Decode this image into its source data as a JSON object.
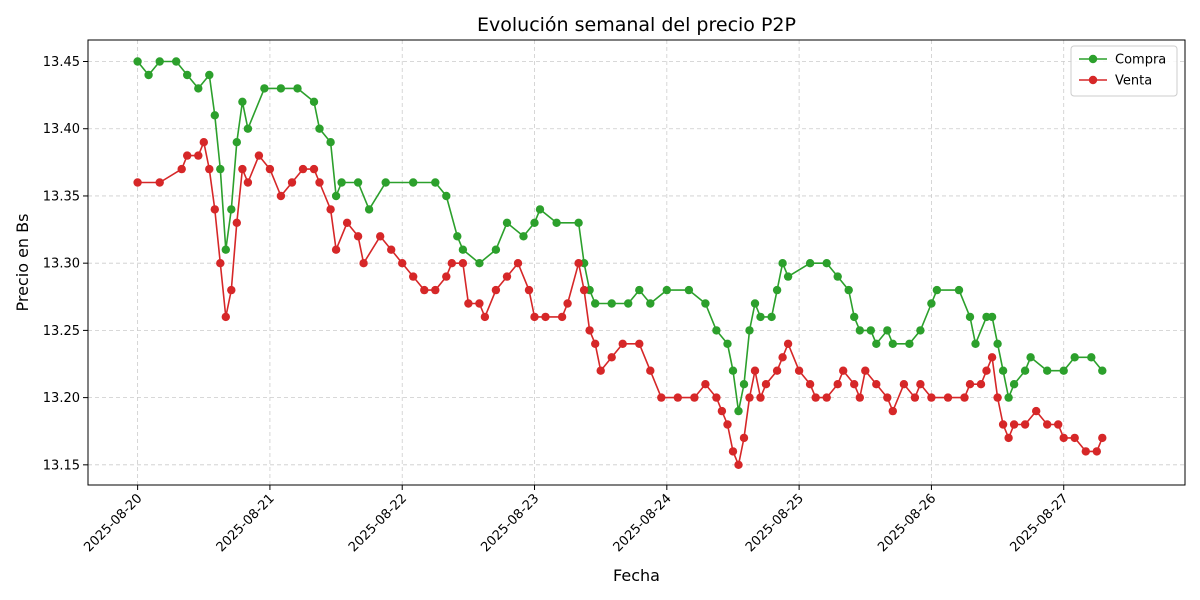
{
  "chart_data": {
    "type": "line",
    "title": "Evolución semanal del precio P2P",
    "xlabel": "Fecha",
    "ylabel": "Precio en Bs",
    "xlim": [
      "2025-08-19T15:00",
      "2025-08-27T22:00"
    ],
    "ylim": [
      13.135,
      13.466
    ],
    "y_ticks": [
      "13.15",
      "13.20",
      "13.25",
      "13.30",
      "13.35",
      "13.40",
      "13.45"
    ],
    "x_ticks": [
      "2025-08-20",
      "2025-08-21",
      "2025-08-22",
      "2025-08-23",
      "2025-08-24",
      "2025-08-25",
      "2025-08-26",
      "2025-08-27"
    ],
    "x_tick_rotation": 45,
    "grid": true,
    "grid_style": "dashed",
    "legend_position": "top-right",
    "marker": "circle",
    "series": [
      {
        "name": "Compra",
        "color": "#2ca02c",
        "points": [
          [
            "2025-08-20T00:00",
            13.45
          ],
          [
            "2025-08-20T02:00",
            13.44
          ],
          [
            "2025-08-20T04:00",
            13.45
          ],
          [
            "2025-08-20T07:00",
            13.45
          ],
          [
            "2025-08-20T09:00",
            13.44
          ],
          [
            "2025-08-20T11:00",
            13.43
          ],
          [
            "2025-08-20T13:00",
            13.44
          ],
          [
            "2025-08-20T14:00",
            13.41
          ],
          [
            "2025-08-20T15:00",
            13.37
          ],
          [
            "2025-08-20T16:00",
            13.31
          ],
          [
            "2025-08-20T17:00",
            13.34
          ],
          [
            "2025-08-20T18:00",
            13.39
          ],
          [
            "2025-08-20T19:00",
            13.42
          ],
          [
            "2025-08-20T20:00",
            13.4
          ],
          [
            "2025-08-20T23:00",
            13.43
          ],
          [
            "2025-08-21T02:00",
            13.43
          ],
          [
            "2025-08-21T05:00",
            13.43
          ],
          [
            "2025-08-21T08:00",
            13.42
          ],
          [
            "2025-08-21T09:00",
            13.4
          ],
          [
            "2025-08-21T11:00",
            13.39
          ],
          [
            "2025-08-21T12:00",
            13.35
          ],
          [
            "2025-08-21T13:00",
            13.36
          ],
          [
            "2025-08-21T16:00",
            13.36
          ],
          [
            "2025-08-21T18:00",
            13.34
          ],
          [
            "2025-08-21T21:00",
            13.36
          ],
          [
            "2025-08-22T02:00",
            13.36
          ],
          [
            "2025-08-22T06:00",
            13.36
          ],
          [
            "2025-08-22T08:00",
            13.35
          ],
          [
            "2025-08-22T10:00",
            13.32
          ],
          [
            "2025-08-22T11:00",
            13.31
          ],
          [
            "2025-08-22T14:00",
            13.3
          ],
          [
            "2025-08-22T17:00",
            13.31
          ],
          [
            "2025-08-22T19:00",
            13.33
          ],
          [
            "2025-08-22T22:00",
            13.32
          ],
          [
            "2025-08-23T00:00",
            13.33
          ],
          [
            "2025-08-23T01:00",
            13.34
          ],
          [
            "2025-08-23T04:00",
            13.33
          ],
          [
            "2025-08-23T08:00",
            13.33
          ],
          [
            "2025-08-23T09:00",
            13.3
          ],
          [
            "2025-08-23T10:00",
            13.28
          ],
          [
            "2025-08-23T11:00",
            13.27
          ],
          [
            "2025-08-23T14:00",
            13.27
          ],
          [
            "2025-08-23T17:00",
            13.27
          ],
          [
            "2025-08-23T19:00",
            13.28
          ],
          [
            "2025-08-23T21:00",
            13.27
          ],
          [
            "2025-08-24T00:00",
            13.28
          ],
          [
            "2025-08-24T04:00",
            13.28
          ],
          [
            "2025-08-24T07:00",
            13.27
          ],
          [
            "2025-08-24T09:00",
            13.25
          ],
          [
            "2025-08-24T11:00",
            13.24
          ],
          [
            "2025-08-24T12:00",
            13.22
          ],
          [
            "2025-08-24T13:00",
            13.19
          ],
          [
            "2025-08-24T14:00",
            13.21
          ],
          [
            "2025-08-24T15:00",
            13.25
          ],
          [
            "2025-08-24T16:00",
            13.27
          ],
          [
            "2025-08-24T17:00",
            13.26
          ],
          [
            "2025-08-24T19:00",
            13.26
          ],
          [
            "2025-08-24T20:00",
            13.28
          ],
          [
            "2025-08-24T21:00",
            13.3
          ],
          [
            "2025-08-24T22:00",
            13.29
          ],
          [
            "2025-08-25T02:00",
            13.3
          ],
          [
            "2025-08-25T05:00",
            13.3
          ],
          [
            "2025-08-25T07:00",
            13.29
          ],
          [
            "2025-08-25T09:00",
            13.28
          ],
          [
            "2025-08-25T10:00",
            13.26
          ],
          [
            "2025-08-25T11:00",
            13.25
          ],
          [
            "2025-08-25T13:00",
            13.25
          ],
          [
            "2025-08-25T14:00",
            13.24
          ],
          [
            "2025-08-25T16:00",
            13.25
          ],
          [
            "2025-08-25T17:00",
            13.24
          ],
          [
            "2025-08-25T20:00",
            13.24
          ],
          [
            "2025-08-25T22:00",
            13.25
          ],
          [
            "2025-08-26T00:00",
            13.27
          ],
          [
            "2025-08-26T01:00",
            13.28
          ],
          [
            "2025-08-26T05:00",
            13.28
          ],
          [
            "2025-08-26T07:00",
            13.26
          ],
          [
            "2025-08-26T08:00",
            13.24
          ],
          [
            "2025-08-26T10:00",
            13.26
          ],
          [
            "2025-08-26T11:00",
            13.26
          ],
          [
            "2025-08-26T12:00",
            13.24
          ],
          [
            "2025-08-26T13:00",
            13.22
          ],
          [
            "2025-08-26T14:00",
            13.2
          ],
          [
            "2025-08-26T15:00",
            13.21
          ],
          [
            "2025-08-26T17:00",
            13.22
          ],
          [
            "2025-08-26T18:00",
            13.23
          ],
          [
            "2025-08-26T21:00",
            13.22
          ],
          [
            "2025-08-27T00:00",
            13.22
          ],
          [
            "2025-08-27T02:00",
            13.23
          ],
          [
            "2025-08-27T05:00",
            13.23
          ],
          [
            "2025-08-27T07:00",
            13.22
          ]
        ]
      },
      {
        "name": "Venta",
        "color": "#d62728",
        "points": [
          [
            "2025-08-20T00:00",
            13.36
          ],
          [
            "2025-08-20T04:00",
            13.36
          ],
          [
            "2025-08-20T08:00",
            13.37
          ],
          [
            "2025-08-20T09:00",
            13.38
          ],
          [
            "2025-08-20T11:00",
            13.38
          ],
          [
            "2025-08-20T12:00",
            13.39
          ],
          [
            "2025-08-20T13:00",
            13.37
          ],
          [
            "2025-08-20T14:00",
            13.34
          ],
          [
            "2025-08-20T15:00",
            13.3
          ],
          [
            "2025-08-20T16:00",
            13.26
          ],
          [
            "2025-08-20T17:00",
            13.28
          ],
          [
            "2025-08-20T18:00",
            13.33
          ],
          [
            "2025-08-20T19:00",
            13.37
          ],
          [
            "2025-08-20T20:00",
            13.36
          ],
          [
            "2025-08-20T22:00",
            13.38
          ],
          [
            "2025-08-21T00:00",
            13.37
          ],
          [
            "2025-08-21T02:00",
            13.35
          ],
          [
            "2025-08-21T04:00",
            13.36
          ],
          [
            "2025-08-21T06:00",
            13.37
          ],
          [
            "2025-08-21T08:00",
            13.37
          ],
          [
            "2025-08-21T09:00",
            13.36
          ],
          [
            "2025-08-21T11:00",
            13.34
          ],
          [
            "2025-08-21T12:00",
            13.31
          ],
          [
            "2025-08-21T14:00",
            13.33
          ],
          [
            "2025-08-21T16:00",
            13.32
          ],
          [
            "2025-08-21T17:00",
            13.3
          ],
          [
            "2025-08-21T20:00",
            13.32
          ],
          [
            "2025-08-21T22:00",
            13.31
          ],
          [
            "2025-08-22T00:00",
            13.3
          ],
          [
            "2025-08-22T02:00",
            13.29
          ],
          [
            "2025-08-22T04:00",
            13.28
          ],
          [
            "2025-08-22T06:00",
            13.28
          ],
          [
            "2025-08-22T08:00",
            13.29
          ],
          [
            "2025-08-22T09:00",
            13.3
          ],
          [
            "2025-08-22T11:00",
            13.3
          ],
          [
            "2025-08-22T12:00",
            13.27
          ],
          [
            "2025-08-22T14:00",
            13.27
          ],
          [
            "2025-08-22T15:00",
            13.26
          ],
          [
            "2025-08-22T17:00",
            13.28
          ],
          [
            "2025-08-22T19:00",
            13.29
          ],
          [
            "2025-08-22T21:00",
            13.3
          ],
          [
            "2025-08-22T23:00",
            13.28
          ],
          [
            "2025-08-23T00:00",
            13.26
          ],
          [
            "2025-08-23T02:00",
            13.26
          ],
          [
            "2025-08-23T05:00",
            13.26
          ],
          [
            "2025-08-23T06:00",
            13.27
          ],
          [
            "2025-08-23T08:00",
            13.3
          ],
          [
            "2025-08-23T09:00",
            13.28
          ],
          [
            "2025-08-23T10:00",
            13.25
          ],
          [
            "2025-08-23T11:00",
            13.24
          ],
          [
            "2025-08-23T12:00",
            13.22
          ],
          [
            "2025-08-23T14:00",
            13.23
          ],
          [
            "2025-08-23T16:00",
            13.24
          ],
          [
            "2025-08-23T19:00",
            13.24
          ],
          [
            "2025-08-23T21:00",
            13.22
          ],
          [
            "2025-08-23T23:00",
            13.2
          ],
          [
            "2025-08-24T02:00",
            13.2
          ],
          [
            "2025-08-24T05:00",
            13.2
          ],
          [
            "2025-08-24T07:00",
            13.21
          ],
          [
            "2025-08-24T09:00",
            13.2
          ],
          [
            "2025-08-24T10:00",
            13.19
          ],
          [
            "2025-08-24T11:00",
            13.18
          ],
          [
            "2025-08-24T12:00",
            13.16
          ],
          [
            "2025-08-24T13:00",
            13.15
          ],
          [
            "2025-08-24T14:00",
            13.17
          ],
          [
            "2025-08-24T15:00",
            13.2
          ],
          [
            "2025-08-24T16:00",
            13.22
          ],
          [
            "2025-08-24T17:00",
            13.2
          ],
          [
            "2025-08-24T18:00",
            13.21
          ],
          [
            "2025-08-24T20:00",
            13.22
          ],
          [
            "2025-08-24T21:00",
            13.23
          ],
          [
            "2025-08-24T22:00",
            13.24
          ],
          [
            "2025-08-25T00:00",
            13.22
          ],
          [
            "2025-08-25T02:00",
            13.21
          ],
          [
            "2025-08-25T03:00",
            13.2
          ],
          [
            "2025-08-25T05:00",
            13.2
          ],
          [
            "2025-08-25T07:00",
            13.21
          ],
          [
            "2025-08-25T08:00",
            13.22
          ],
          [
            "2025-08-25T10:00",
            13.21
          ],
          [
            "2025-08-25T11:00",
            13.2
          ],
          [
            "2025-08-25T12:00",
            13.22
          ],
          [
            "2025-08-25T14:00",
            13.21
          ],
          [
            "2025-08-25T16:00",
            13.2
          ],
          [
            "2025-08-25T17:00",
            13.19
          ],
          [
            "2025-08-25T19:00",
            13.21
          ],
          [
            "2025-08-25T21:00",
            13.2
          ],
          [
            "2025-08-25T22:00",
            13.21
          ],
          [
            "2025-08-26T00:00",
            13.2
          ],
          [
            "2025-08-26T03:00",
            13.2
          ],
          [
            "2025-08-26T06:00",
            13.2
          ],
          [
            "2025-08-26T07:00",
            13.21
          ],
          [
            "2025-08-26T09:00",
            13.21
          ],
          [
            "2025-08-26T10:00",
            13.22
          ],
          [
            "2025-08-26T11:00",
            13.23
          ],
          [
            "2025-08-26T12:00",
            13.2
          ],
          [
            "2025-08-26T13:00",
            13.18
          ],
          [
            "2025-08-26T14:00",
            13.17
          ],
          [
            "2025-08-26T15:00",
            13.18
          ],
          [
            "2025-08-26T17:00",
            13.18
          ],
          [
            "2025-08-26T19:00",
            13.19
          ],
          [
            "2025-08-26T21:00",
            13.18
          ],
          [
            "2025-08-26T23:00",
            13.18
          ],
          [
            "2025-08-27T00:00",
            13.17
          ],
          [
            "2025-08-27T02:00",
            13.17
          ],
          [
            "2025-08-27T04:00",
            13.16
          ],
          [
            "2025-08-27T06:00",
            13.16
          ],
          [
            "2025-08-27T07:00",
            13.17
          ]
        ]
      }
    ]
  }
}
